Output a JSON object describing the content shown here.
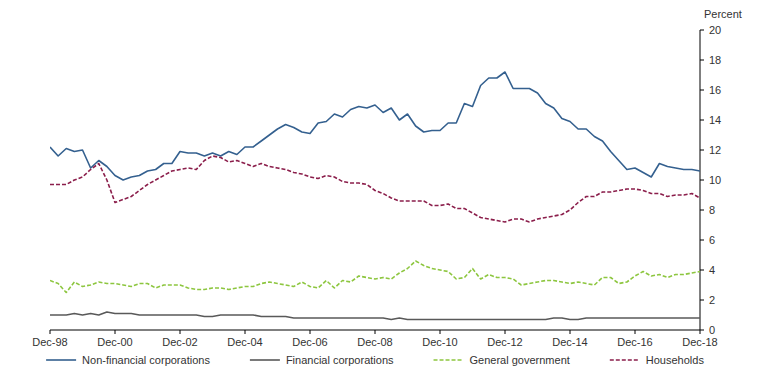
{
  "chart_data": {
    "type": "line",
    "ylabel": "Percent",
    "categories": [
      "Dec-98",
      null,
      null,
      null,
      null,
      null,
      null,
      null,
      "Dec-00",
      null,
      null,
      null,
      null,
      null,
      null,
      null,
      "Dec-02",
      null,
      null,
      null,
      null,
      null,
      null,
      null,
      "Dec-04",
      null,
      null,
      null,
      null,
      null,
      null,
      null,
      "Dec-06",
      null,
      null,
      null,
      null,
      null,
      null,
      null,
      "Dec-08",
      null,
      null,
      null,
      null,
      null,
      null,
      null,
      "Dec-10",
      null,
      null,
      null,
      null,
      null,
      null,
      null,
      "Dec-12",
      null,
      null,
      null,
      null,
      null,
      null,
      null,
      "Dec-14",
      null,
      null,
      null,
      null,
      null,
      null,
      null,
      "Dec-16",
      null,
      null,
      null,
      null,
      null,
      null,
      null,
      "Dec-18"
    ],
    "series": [
      {
        "name": "Non-financial corporations",
        "color": "#34608f",
        "line_style": "solid",
        "values": [
          12.2,
          11.6,
          12.1,
          11.9,
          12.0,
          10.8,
          11.3,
          10.9,
          10.3,
          10.0,
          10.2,
          10.3,
          10.6,
          10.7,
          11.1,
          11.1,
          11.9,
          11.8,
          11.8,
          11.6,
          11.8,
          11.6,
          11.9,
          11.7,
          12.2,
          12.2,
          12.6,
          13.0,
          13.4,
          13.7,
          13.5,
          13.2,
          13.1,
          13.8,
          13.9,
          14.4,
          14.2,
          14.7,
          14.9,
          14.8,
          15.0,
          14.5,
          14.8,
          14.0,
          14.4,
          13.6,
          13.2,
          13.3,
          13.3,
          13.8,
          13.8,
          15.1,
          14.9,
          16.3,
          16.8,
          16.8,
          17.2,
          16.1,
          16.1,
          16.1,
          15.8,
          15.1,
          14.8,
          14.1,
          13.9,
          13.4,
          13.4,
          12.9,
          12.6,
          11.9,
          11.3,
          10.7,
          10.8,
          10.5,
          10.2,
          11.1,
          10.9,
          10.8,
          10.7,
          10.7,
          10.6
        ]
      },
      {
        "name": "Financial corporations",
        "color": "#595959",
        "line_style": "solid",
        "values": [
          1.0,
          1.0,
          1.0,
          1.1,
          1.0,
          1.1,
          1.0,
          1.2,
          1.1,
          1.1,
          1.1,
          1.0,
          1.0,
          1.0,
          1.0,
          1.0,
          1.0,
          1.0,
          1.0,
          0.9,
          0.9,
          1.0,
          1.0,
          1.0,
          1.0,
          1.0,
          0.9,
          0.9,
          0.9,
          0.9,
          0.8,
          0.8,
          0.8,
          0.8,
          0.8,
          0.8,
          0.8,
          0.8,
          0.8,
          0.8,
          0.8,
          0.8,
          0.7,
          0.8,
          0.7,
          0.7,
          0.7,
          0.7,
          0.7,
          0.7,
          0.7,
          0.7,
          0.7,
          0.7,
          0.7,
          0.7,
          0.7,
          0.7,
          0.7,
          0.7,
          0.7,
          0.7,
          0.8,
          0.8,
          0.7,
          0.7,
          0.8,
          0.8,
          0.8,
          0.8,
          0.8,
          0.8,
          0.8,
          0.8,
          0.8,
          0.8,
          0.8,
          0.8,
          0.8,
          0.8,
          0.8
        ]
      },
      {
        "name": "General government",
        "color": "#8dc63f",
        "line_style": "dashed",
        "values": [
          3.3,
          3.1,
          2.5,
          3.2,
          2.9,
          3.0,
          3.2,
          3.1,
          3.1,
          3.0,
          2.9,
          3.1,
          3.1,
          2.8,
          3.0,
          3.0,
          3.0,
          2.8,
          2.7,
          2.7,
          2.8,
          2.8,
          2.7,
          2.8,
          2.9,
          2.9,
          3.1,
          3.2,
          3.1,
          3.0,
          2.9,
          3.2,
          2.9,
          2.8,
          3.3,
          2.8,
          3.3,
          3.2,
          3.6,
          3.5,
          3.4,
          3.5,
          3.4,
          3.8,
          4.1,
          4.6,
          4.3,
          4.1,
          4.0,
          3.9,
          3.4,
          3.5,
          4.1,
          3.4,
          3.7,
          3.5,
          3.5,
          3.4,
          3.0,
          3.1,
          3.2,
          3.3,
          3.3,
          3.2,
          3.1,
          3.2,
          3.1,
          3.0,
          3.5,
          3.5,
          3.1,
          3.2,
          3.6,
          3.9,
          3.6,
          3.7,
          3.5,
          3.7,
          3.7,
          3.8,
          3.9
        ]
      },
      {
        "name": "Households",
        "color": "#8b1e4b",
        "line_style": "dashed",
        "values": [
          9.7,
          9.7,
          9.7,
          10.0,
          10.2,
          10.7,
          11.1,
          10.0,
          8.5,
          8.7,
          8.9,
          9.3,
          9.7,
          10.0,
          10.3,
          10.6,
          10.7,
          10.8,
          10.7,
          11.3,
          11.6,
          11.5,
          11.2,
          11.3,
          11.1,
          10.9,
          11.1,
          10.9,
          10.8,
          10.7,
          10.5,
          10.4,
          10.2,
          10.1,
          10.3,
          10.2,
          9.9,
          9.8,
          9.8,
          9.7,
          9.3,
          9.1,
          8.8,
          8.6,
          8.6,
          8.6,
          8.6,
          8.3,
          8.3,
          8.4,
          8.1,
          8.1,
          7.8,
          7.5,
          7.4,
          7.3,
          7.2,
          7.4,
          7.4,
          7.2,
          7.4,
          7.5,
          7.6,
          7.7,
          8.0,
          8.5,
          8.9,
          8.9,
          9.2,
          9.2,
          9.3,
          9.4,
          9.4,
          9.3,
          9.1,
          9.1,
          8.9,
          9.0,
          9.0,
          9.1,
          8.8
        ]
      }
    ],
    "ylim": [
      0,
      20
    ],
    "yticks": [
      0,
      2,
      4,
      6,
      8,
      10,
      12,
      14,
      16,
      18,
      20
    ],
    "grid": false,
    "legend": "bottom"
  }
}
